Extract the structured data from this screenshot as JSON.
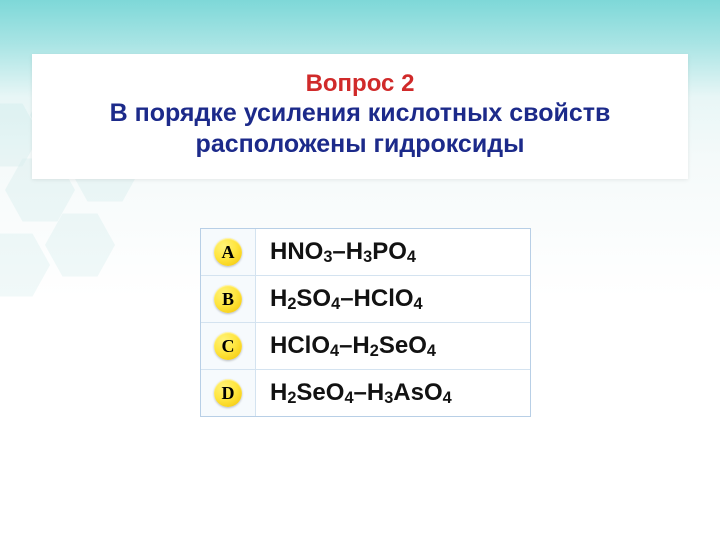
{
  "question": {
    "number_label": "Вопрос 2",
    "text_line1": "В порядке усиления кислотных свойств",
    "text_line2": "расположены гидроксиды",
    "title_color": "#d02a2a",
    "text_color": "#1c2a8a",
    "title_fontsize": 24,
    "text_fontsize": 25,
    "card_background": "#ffffff"
  },
  "answers": {
    "border_color": "#b8cfe6",
    "row_divider_color": "#d4e3f0",
    "formula_color": "#121212",
    "formula_fontsize": 24,
    "badge_gradient_from": "#fff37a",
    "badge_gradient_mid": "#ffe640",
    "badge_gradient_to": "#f2c200",
    "options": [
      {
        "letter": "A",
        "formula_html": "HNO<sub>3</sub>–H<sub>3</sub>PO<sub>4</sub>"
      },
      {
        "letter": "B",
        "formula_html": "H<sub>2</sub>SO<sub>4</sub>–HClO<sub>4</sub>"
      },
      {
        "letter": "C",
        "formula_html": "HClO<sub>4</sub>–H<sub>2</sub>SeO<sub>4</sub>"
      },
      {
        "letter": "D",
        "formula_html": "H<sub>2</sub>SeO<sub>4</sub>–H<sub>3</sub>AsO<sub>4</sub>"
      }
    ]
  },
  "background": {
    "gradient_top": "#7ed8d8",
    "gradient_bottom": "#ffffff"
  }
}
